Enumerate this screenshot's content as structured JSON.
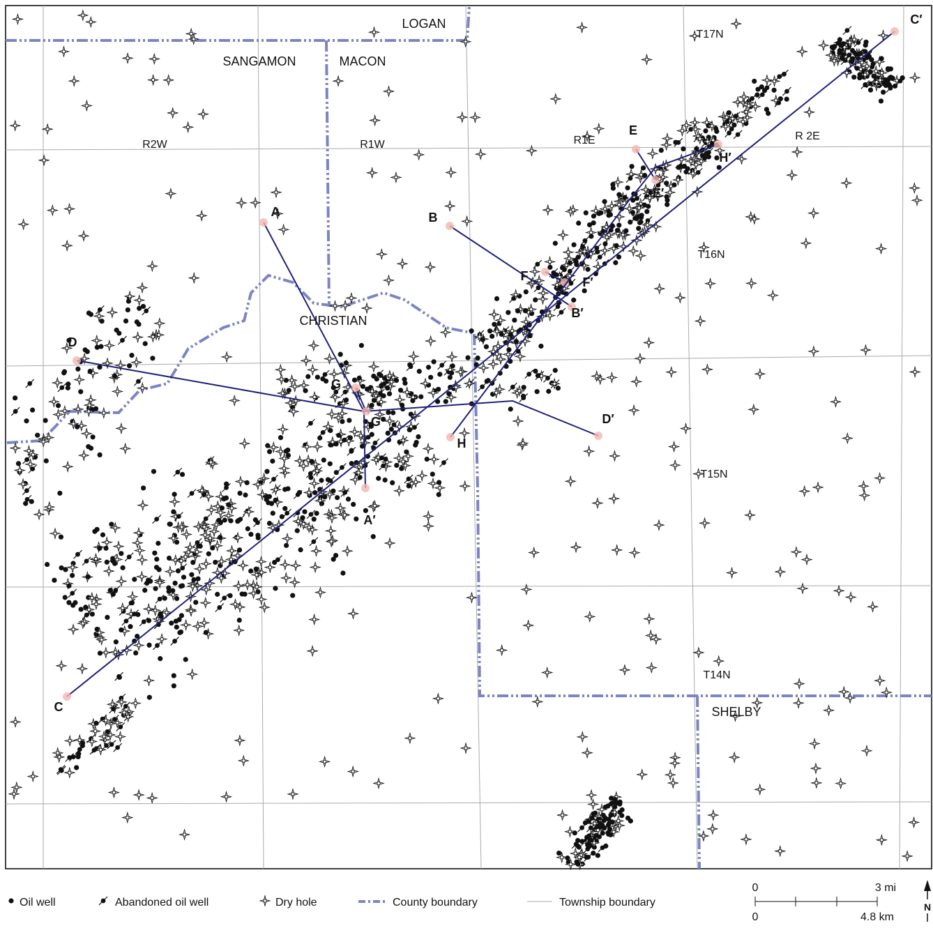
{
  "counties": [
    "LOGAN",
    "SANGAMON",
    "MACON",
    "CHRISTIAN",
    "SHELBY"
  ],
  "ranges": [
    "R2W",
    "R1W",
    "R1E",
    "R 2E"
  ],
  "townships": [
    "T17N",
    "T16N",
    "T15N",
    "T14N"
  ],
  "cross_sections": [
    {
      "start": "A",
      "end": "A′"
    },
    {
      "start": "B",
      "end": "B′"
    },
    {
      "start": "C",
      "end": "C′"
    },
    {
      "start": "D",
      "end": "D′"
    },
    {
      "start": "E",
      "end": "E′"
    },
    {
      "start": "F",
      "end": "F′"
    },
    {
      "start": "G",
      "end": "G′"
    },
    {
      "start": "H",
      "end": "H′"
    }
  ],
  "legend": [
    "Oil well",
    "Abandoned oil well",
    "Dry hole",
    "County boundary",
    "Township boundary"
  ],
  "scale": {
    "top": [
      "0",
      "3 mi"
    ],
    "bottom": [
      "0",
      "4.8 km"
    ]
  },
  "north": "N"
}
